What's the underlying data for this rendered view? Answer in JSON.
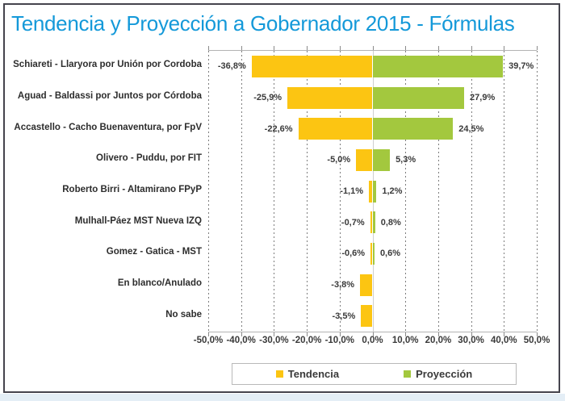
{
  "page": {
    "title": "Tendencia y Proyección a Gobernador 2015 - Fórmulas"
  },
  "colors": {
    "title": "#1499d9",
    "tendencia": "#fcc512",
    "proyeccion": "#a3c83e",
    "frame": "#45444d",
    "bottom_strip": "#e4eef6",
    "value_text": "#3a3a3a"
  },
  "legend": {
    "items": [
      {
        "label": "Tendencia",
        "color": "#fcc512"
      },
      {
        "label": "Proyección",
        "color": "#a3c83e"
      }
    ]
  },
  "chart_data": {
    "type": "bar",
    "orientation": "horizontal-diverging",
    "title": "Tendencia y Proyección a Gobernador 2015 - Fórmulas",
    "categories": [
      "Schiareti - Llaryora por Unión por Cordoba",
      "Aguad - Baldassi por Juntos por Córdoba",
      "Accastello - Cacho Buenaventura, por FpV",
      "Olivero - Puddu, por FIT",
      "Roberto Birri - Altamirano FPyP",
      "Mulhall-Páez MST Nueva IZQ",
      "Gomez - Gatica - MST",
      "En blanco/Anulado",
      "No sabe"
    ],
    "series": [
      {
        "name": "Tendencia",
        "color": "#fcc512",
        "values": [
          -36.8,
          -25.9,
          -22.6,
          -5.0,
          -1.1,
          -0.7,
          -0.6,
          -3.8,
          -3.5
        ],
        "labels": [
          "-36,8%",
          "-25,9%",
          "-22,6%",
          "-5,0%",
          "-1,1%",
          "-0,7%",
          "-0,6%",
          "-3,8%",
          "-3,5%"
        ]
      },
      {
        "name": "Proyección",
        "color": "#a3c83e",
        "values": [
          39.7,
          27.9,
          24.5,
          5.3,
          1.2,
          0.8,
          0.6,
          null,
          null
        ],
        "labels": [
          "39,7%",
          "27,9%",
          "24,5%",
          "5,3%",
          "1,2%",
          "0,8%",
          "0,6%",
          "",
          ""
        ]
      }
    ],
    "xlim": [
      -50,
      50
    ],
    "x_ticks": [
      "-50,0%",
      "-40,0%",
      "-30,0%",
      "-20,0%",
      "-10,0%",
      "0,0%",
      "10,0%",
      "20,0%",
      "30,0%",
      "40,0%",
      "50,0%"
    ],
    "grid": "vertical-dashed",
    "legend_position": "bottom"
  }
}
